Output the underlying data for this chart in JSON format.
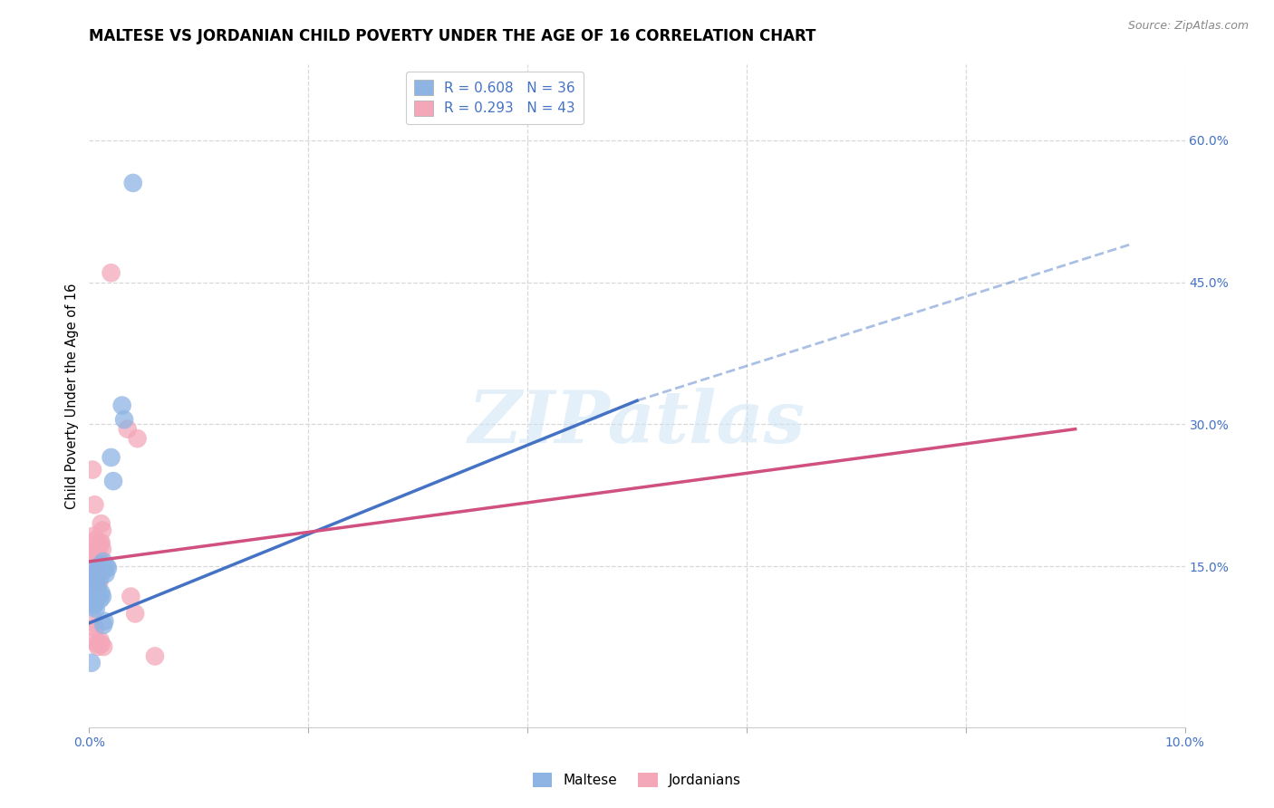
{
  "title": "MALTESE VS JORDANIAN CHILD POVERTY UNDER THE AGE OF 16 CORRELATION CHART",
  "source": "Source: ZipAtlas.com",
  "ylabel": "Child Poverty Under the Age of 16",
  "xlim": [
    0.0,
    0.1
  ],
  "ylim": [
    -0.02,
    0.68
  ],
  "xticks": [
    0.0,
    0.02,
    0.04,
    0.06,
    0.08,
    0.1
  ],
  "xtick_labels": [
    "0.0%",
    "",
    "",
    "",
    "",
    "10.0%"
  ],
  "ytick_right_vals": [
    0.15,
    0.3,
    0.45,
    0.6
  ],
  "ytick_right_labels": [
    "15.0%",
    "30.0%",
    "45.0%",
    "60.0%"
  ],
  "maltese_color": "#8eb4e3",
  "jordanian_color": "#f4a7b9",
  "maltese_line_color": "#4472c4",
  "jordanian_line_color": "#d05080",
  "maltese_R": 0.608,
  "maltese_N": 36,
  "jordanian_R": 0.293,
  "jordanian_N": 43,
  "watermark": "ZIPatlas",
  "background_color": "#ffffff",
  "grid_color": "#d8d8d8",
  "maltese_line": {
    "x0": 0.0,
    "y0": 0.09,
    "x1": 0.05,
    "y1": 0.325,
    "xdash": 0.095,
    "ydash": 0.49
  },
  "jordanian_line": {
    "x0": 0.0,
    "y0": 0.155,
    "x1": 0.09,
    "y1": 0.295
  },
  "maltese_scatter": [
    [
      0.0003,
      0.135
    ],
    [
      0.0005,
      0.148
    ],
    [
      0.0006,
      0.13
    ],
    [
      0.0007,
      0.14
    ],
    [
      0.0008,
      0.145
    ],
    [
      0.0009,
      0.15
    ],
    [
      0.001,
      0.138
    ],
    [
      0.0011,
      0.152
    ],
    [
      0.0012,
      0.145
    ],
    [
      0.0013,
      0.155
    ],
    [
      0.0014,
      0.148
    ],
    [
      0.0015,
      0.142
    ],
    [
      0.0016,
      0.15
    ],
    [
      0.0017,
      0.148
    ],
    [
      0.0003,
      0.125
    ],
    [
      0.0004,
      0.133
    ],
    [
      0.0005,
      0.14
    ],
    [
      0.0006,
      0.138
    ],
    [
      0.0007,
      0.13
    ],
    [
      0.0008,
      0.125
    ],
    [
      0.0003,
      0.115
    ],
    [
      0.0004,
      0.108
    ],
    [
      0.0005,
      0.11
    ],
    [
      0.0006,
      0.105
    ],
    [
      0.0009,
      0.119
    ],
    [
      0.001,
      0.115
    ],
    [
      0.0011,
      0.122
    ],
    [
      0.0012,
      0.118
    ],
    [
      0.0013,
      0.088
    ],
    [
      0.0014,
      0.092
    ],
    [
      0.002,
      0.265
    ],
    [
      0.0022,
      0.24
    ],
    [
      0.0002,
      0.048
    ],
    [
      0.003,
      0.32
    ],
    [
      0.0032,
      0.305
    ],
    [
      0.004,
      0.555
    ]
  ],
  "jordanian_scatter": [
    [
      0.0002,
      0.155
    ],
    [
      0.0004,
      0.162
    ],
    [
      0.0005,
      0.148
    ],
    [
      0.0006,
      0.152
    ],
    [
      0.0007,
      0.145
    ],
    [
      0.0008,
      0.158
    ],
    [
      0.0009,
      0.148
    ],
    [
      0.001,
      0.155
    ],
    [
      0.0011,
      0.175
    ],
    [
      0.0012,
      0.168
    ],
    [
      0.0003,
      0.165
    ],
    [
      0.0004,
      0.172
    ],
    [
      0.0005,
      0.215
    ],
    [
      0.0006,
      0.178
    ],
    [
      0.0007,
      0.162
    ],
    [
      0.0008,
      0.17
    ],
    [
      0.0009,
      0.168
    ],
    [
      0.001,
      0.175
    ],
    [
      0.0011,
      0.195
    ],
    [
      0.0012,
      0.188
    ],
    [
      0.0002,
      0.158
    ],
    [
      0.0003,
      0.252
    ],
    [
      0.0004,
      0.182
    ],
    [
      0.0005,
      0.162
    ],
    [
      0.0006,
      0.148
    ],
    [
      0.0007,
      0.145
    ],
    [
      0.0008,
      0.138
    ],
    [
      0.0009,
      0.132
    ],
    [
      0.0003,
      0.128
    ],
    [
      0.0004,
      0.09
    ],
    [
      0.0005,
      0.085
    ],
    [
      0.0006,
      0.072
    ],
    [
      0.0007,
      0.068
    ],
    [
      0.0008,
      0.065
    ],
    [
      0.002,
      0.46
    ],
    [
      0.0035,
      0.295
    ],
    [
      0.0038,
      0.118
    ],
    [
      0.0042,
      0.1
    ],
    [
      0.0044,
      0.285
    ],
    [
      0.006,
      0.055
    ],
    [
      0.001,
      0.072
    ],
    [
      0.0011,
      0.068
    ],
    [
      0.0013,
      0.065
    ]
  ]
}
